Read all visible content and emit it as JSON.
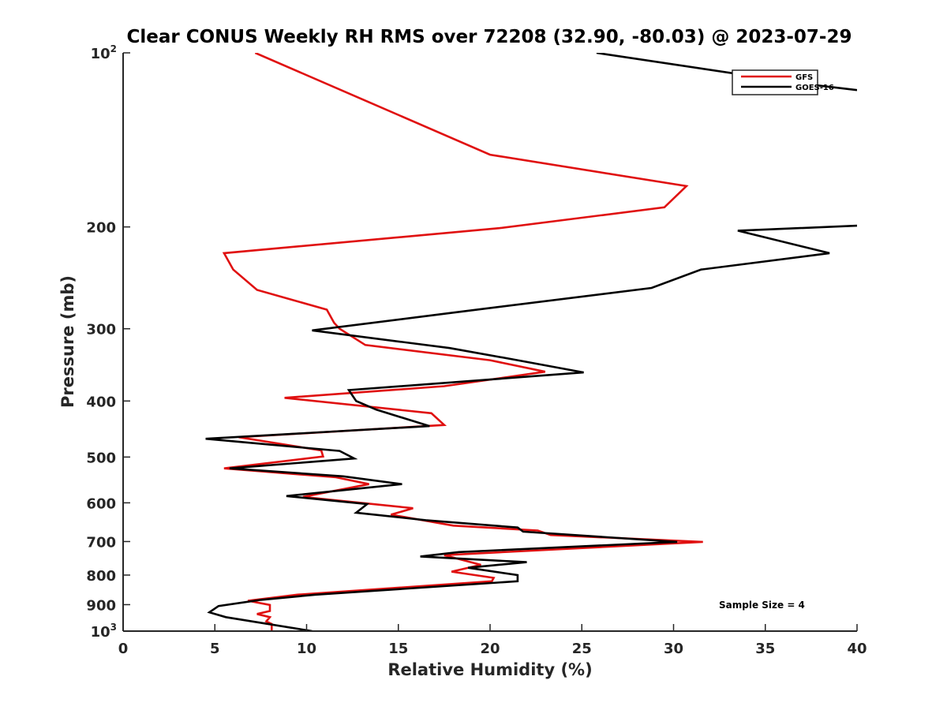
{
  "chart_data": {
    "type": "line",
    "title": "Clear CONUS Weekly RH RMS over 72208 (32.90, -80.03) @ 2023-07-29",
    "xlabel": "Relative Humidity (%)",
    "ylabel": "Pressure (mb)",
    "xlim": [
      0,
      40
    ],
    "ylim": [
      100,
      1000
    ],
    "yscale": "log",
    "y_reversed": true,
    "x_ticks": [
      "0",
      "5",
      "10",
      "15",
      "20",
      "25",
      "30",
      "35",
      "40"
    ],
    "y_ticks": [
      {
        "value": 100,
        "base": "10",
        "exp": "2"
      },
      {
        "value": 200,
        "base": "200",
        "exp": ""
      },
      {
        "value": 300,
        "base": "300",
        "exp": ""
      },
      {
        "value": 400,
        "base": "400",
        "exp": ""
      },
      {
        "value": 500,
        "base": "500",
        "exp": ""
      },
      {
        "value": 600,
        "base": "600",
        "exp": ""
      },
      {
        "value": 700,
        "base": "700",
        "exp": ""
      },
      {
        "value": 800,
        "base": "800",
        "exp": ""
      },
      {
        "value": 900,
        "base": "900",
        "exp": ""
      },
      {
        "value": 1000,
        "base": "10",
        "exp": "3"
      }
    ],
    "grid": false,
    "legend_position": "top-right",
    "annotation": "Sample Size = 4",
    "series": [
      {
        "name": "GFS",
        "color": "#e01010",
        "points": [
          [
            7.2,
            100
          ],
          [
            20.0,
            150
          ],
          [
            30.7,
            170
          ],
          [
            29.5,
            185
          ],
          [
            20.5,
            201
          ],
          [
            5.5,
            222
          ],
          [
            6.0,
            237
          ],
          [
            7.3,
            257
          ],
          [
            11.1,
            278
          ],
          [
            11.5,
            293
          ],
          [
            11.8,
            300
          ],
          [
            13.2,
            320
          ],
          [
            20.0,
            340
          ],
          [
            23.0,
            356
          ],
          [
            17.5,
            377
          ],
          [
            8.8,
            395
          ],
          [
            16.8,
            420
          ],
          [
            17.5,
            440
          ],
          [
            6.3,
            462
          ],
          [
            10.8,
            487
          ],
          [
            10.9,
            499
          ],
          [
            5.5,
            523
          ],
          [
            11.6,
            542
          ],
          [
            13.4,
            557
          ],
          [
            9.8,
            586
          ],
          [
            15.8,
            613
          ],
          [
            14.6,
            629
          ],
          [
            18.0,
            657
          ],
          [
            22.6,
            670
          ],
          [
            23.3,
            682
          ],
          [
            31.6,
            701
          ],
          [
            17.5,
            739
          ],
          [
            19.5,
            768
          ],
          [
            17.9,
            789
          ],
          [
            20.2,
            809
          ],
          [
            20.1,
            820
          ],
          [
            9.5,
            865
          ],
          [
            6.8,
            886
          ],
          [
            8.0,
            901
          ],
          [
            8.0,
            923
          ],
          [
            7.3,
            934
          ],
          [
            8.0,
            946
          ],
          [
            7.8,
            962
          ],
          [
            8.1,
            972
          ],
          [
            8.1,
            1000
          ]
        ]
      },
      {
        "name": "GOES-16",
        "color": "#000000",
        "points": [
          [
            25.8,
            100
          ],
          [
            37.0,
            113
          ],
          [
            40.0,
            116
          ],
          null,
          [
            40.0,
            199
          ],
          [
            33.5,
            203
          ],
          [
            38.5,
            222
          ],
          [
            31.5,
            237
          ],
          [
            28.8,
            255
          ],
          [
            18.5,
            280
          ],
          [
            10.3,
            302
          ],
          [
            17.8,
            324
          ],
          [
            21.5,
            340
          ],
          [
            25.1,
            357
          ],
          [
            12.3,
            383
          ],
          [
            12.7,
            400
          ],
          [
            13.8,
            414
          ],
          [
            16.7,
            442
          ],
          [
            4.5,
            465
          ],
          [
            11.8,
            488
          ],
          [
            12.6,
            503
          ],
          [
            5.8,
            523
          ],
          [
            12.0,
            540
          ],
          [
            15.2,
            557
          ],
          [
            8.9,
            584
          ],
          [
            13.3,
            603
          ],
          [
            12.7,
            624
          ],
          [
            16.5,
            643
          ],
          [
            21.5,
            662
          ],
          [
            21.8,
            673
          ],
          [
            30.2,
            701
          ],
          [
            18.3,
            730
          ],
          [
            16.2,
            743
          ],
          [
            22.0,
            760
          ],
          [
            18.8,
            777
          ],
          [
            21.5,
            800
          ],
          [
            21.5,
            820
          ],
          [
            10.5,
            865
          ],
          [
            7.5,
            883
          ],
          [
            5.2,
            905
          ],
          [
            4.7,
            928
          ],
          [
            5.6,
            946
          ],
          [
            10.3,
            1000
          ]
        ]
      }
    ]
  }
}
